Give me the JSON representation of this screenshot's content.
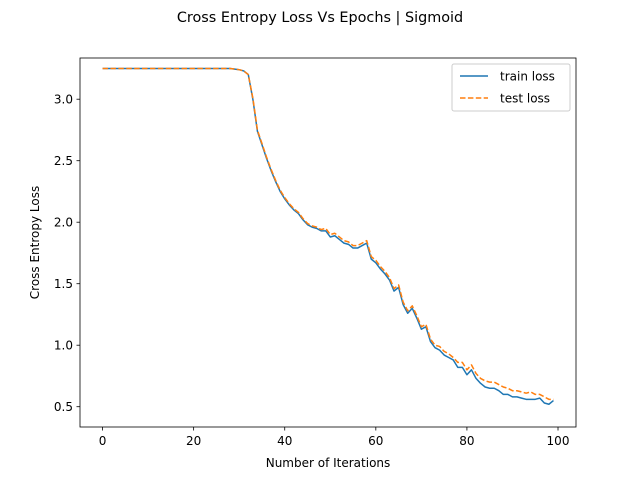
{
  "chart_data": {
    "type": "line",
    "title": "Cross Entropy Loss Vs Epochs | Sigmoid",
    "xlabel": "Number of Iterations",
    "ylabel": "Cross Entropy Loss",
    "xlim": [
      -4.95,
      103.95
    ],
    "ylim": [
      0.335,
      3.335
    ],
    "xticks": [
      0,
      20,
      40,
      60,
      80,
      100
    ],
    "yticks": [
      0.5,
      1.0,
      1.5,
      2.0,
      2.5,
      3.0
    ],
    "xtick_labels": [
      "0",
      "20",
      "40",
      "60",
      "80",
      "100"
    ],
    "ytick_labels": [
      "0.5",
      "1.0",
      "1.5",
      "2.0",
      "2.5",
      "3.0"
    ],
    "grid": false,
    "legend_position": "top-right",
    "x": [
      0,
      1,
      2,
      3,
      4,
      5,
      6,
      7,
      8,
      9,
      10,
      11,
      12,
      13,
      14,
      15,
      16,
      17,
      18,
      19,
      20,
      21,
      22,
      23,
      24,
      25,
      26,
      27,
      28,
      29,
      30,
      31,
      32,
      33,
      34,
      35,
      36,
      37,
      38,
      39,
      40,
      41,
      42,
      43,
      44,
      45,
      46,
      47,
      48,
      49,
      50,
      51,
      52,
      53,
      54,
      55,
      56,
      57,
      58,
      59,
      60,
      61,
      62,
      63,
      64,
      65,
      66,
      67,
      68,
      69,
      70,
      71,
      72,
      73,
      74,
      75,
      76,
      77,
      78,
      79,
      80,
      81,
      82,
      83,
      84,
      85,
      86,
      87,
      88,
      89,
      90,
      91,
      92,
      93,
      94,
      95,
      96,
      97,
      98,
      99
    ],
    "series": [
      {
        "name": "train loss",
        "color": "#1f77b4",
        "dash": "solid",
        "values": [
          3.25,
          3.25,
          3.25,
          3.25,
          3.25,
          3.25,
          3.25,
          3.25,
          3.25,
          3.25,
          3.25,
          3.25,
          3.25,
          3.25,
          3.25,
          3.25,
          3.25,
          3.25,
          3.25,
          3.25,
          3.25,
          3.25,
          3.25,
          3.25,
          3.25,
          3.25,
          3.25,
          3.25,
          3.25,
          3.245,
          3.24,
          3.23,
          3.2,
          3.0,
          2.74,
          2.63,
          2.52,
          2.42,
          2.33,
          2.25,
          2.19,
          2.14,
          2.1,
          2.07,
          2.02,
          1.98,
          1.96,
          1.95,
          1.93,
          1.93,
          1.88,
          1.89,
          1.86,
          1.83,
          1.82,
          1.79,
          1.79,
          1.81,
          1.83,
          1.7,
          1.67,
          1.62,
          1.58,
          1.53,
          1.44,
          1.47,
          1.33,
          1.26,
          1.3,
          1.22,
          1.13,
          1.15,
          1.03,
          0.98,
          0.96,
          0.92,
          0.9,
          0.88,
          0.82,
          0.82,
          0.76,
          0.8,
          0.73,
          0.69,
          0.66,
          0.65,
          0.65,
          0.63,
          0.6,
          0.6,
          0.58,
          0.58,
          0.57,
          0.56,
          0.56,
          0.56,
          0.57,
          0.53,
          0.52,
          0.55
        ]
      },
      {
        "name": "test loss",
        "color": "#ff7f0e",
        "dash": "dashed",
        "values": [
          3.25,
          3.25,
          3.25,
          3.25,
          3.25,
          3.25,
          3.25,
          3.25,
          3.25,
          3.25,
          3.25,
          3.25,
          3.25,
          3.25,
          3.25,
          3.25,
          3.25,
          3.25,
          3.25,
          3.25,
          3.25,
          3.25,
          3.25,
          3.25,
          3.25,
          3.25,
          3.25,
          3.25,
          3.25,
          3.245,
          3.24,
          3.23,
          3.2,
          3.01,
          2.75,
          2.64,
          2.53,
          2.43,
          2.34,
          2.26,
          2.2,
          2.15,
          2.11,
          2.08,
          2.03,
          1.99,
          1.97,
          1.96,
          1.94,
          1.95,
          1.9,
          1.91,
          1.88,
          1.85,
          1.84,
          1.81,
          1.81,
          1.83,
          1.85,
          1.72,
          1.69,
          1.64,
          1.6,
          1.55,
          1.46,
          1.49,
          1.35,
          1.28,
          1.32,
          1.24,
          1.15,
          1.17,
          1.05,
          1.0,
          0.99,
          0.95,
          0.93,
          0.9,
          0.86,
          0.86,
          0.8,
          0.84,
          0.77,
          0.73,
          0.71,
          0.7,
          0.7,
          0.68,
          0.66,
          0.65,
          0.63,
          0.63,
          0.62,
          0.61,
          0.62,
          0.6,
          0.6,
          0.58,
          0.56,
          0.56
        ]
      }
    ]
  }
}
